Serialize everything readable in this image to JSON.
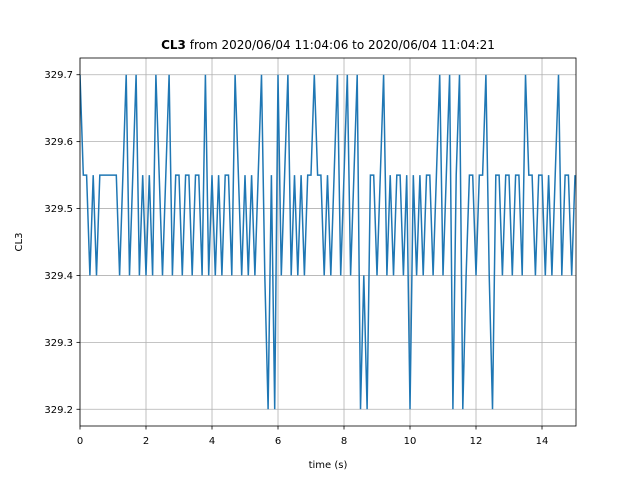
{
  "chart_data": {
    "type": "line",
    "title_bold": "CL3",
    "title": "from 2020/06/04 11:04:06 to 2020/06/04 11:04:21",
    "xlabel": "time (s)",
    "ylabel": "CL3",
    "xlim": [
      0,
      15.03
    ],
    "ylim": [
      329.175,
      329.725
    ],
    "xticks": [
      0,
      2,
      4,
      6,
      8,
      10,
      12,
      14
    ],
    "yticks": [
      329.2,
      329.3,
      329.4,
      329.5,
      329.6,
      329.7
    ],
    "grid": true,
    "series": [
      {
        "color": "#1f77b4",
        "x": [
          0,
          0.1,
          0.2,
          0.3,
          0.4,
          0.5,
          0.6,
          0.7,
          0.8,
          0.9,
          1,
          1.1,
          1.2,
          1.3,
          1.4,
          1.5,
          1.6,
          1.7,
          1.8,
          1.9,
          2,
          2.1,
          2.2,
          2.3,
          2.4,
          2.5,
          2.6,
          2.7,
          2.8,
          2.9,
          3,
          3.1,
          3.2,
          3.3,
          3.4,
          3.5,
          3.6,
          3.7,
          3.8,
          3.9,
          4,
          4.1,
          4.2,
          4.3,
          4.4,
          4.5,
          4.6,
          4.7,
          4.8,
          4.9,
          5,
          5.1,
          5.2,
          5.3,
          5.4,
          5.5,
          5.6,
          5.7,
          5.8,
          5.9,
          6,
          6.1,
          6.2,
          6.3,
          6.4,
          6.5,
          6.6,
          6.7,
          6.8,
          6.9,
          7,
          7.1,
          7.2,
          7.3,
          7.4,
          7.5,
          7.6,
          7.7,
          7.8,
          7.9,
          8,
          8.1,
          8.2,
          8.3,
          8.4,
          8.5,
          8.6,
          8.7,
          8.8,
          8.9,
          9,
          9.1,
          9.2,
          9.3,
          9.4,
          9.5,
          9.6,
          9.7,
          9.8,
          9.9,
          10,
          10.1,
          10.2,
          10.3,
          10.4,
          10.5,
          10.6,
          10.7,
          10.8,
          10.9,
          11,
          11.1,
          11.2,
          11.3,
          11.4,
          11.5,
          11.6,
          11.7,
          11.8,
          11.9,
          12,
          12.1,
          12.2,
          12.3,
          12.4,
          12.5,
          12.6,
          12.7,
          12.8,
          12.9,
          13,
          13.1,
          13.2,
          13.3,
          13.4,
          13.5,
          13.6,
          13.7,
          13.8,
          13.9,
          14,
          14.1,
          14.2,
          14.3,
          14.4,
          14.5,
          14.6,
          14.7,
          14.8,
          14.9,
          15
        ],
        "values": [
          329.7,
          329.55,
          329.55,
          329.4,
          329.55,
          329.4,
          329.55,
          329.55,
          329.55,
          329.55,
          329.55,
          329.55,
          329.4,
          329.55,
          329.7,
          329.4,
          329.55,
          329.7,
          329.4,
          329.55,
          329.4,
          329.55,
          329.4,
          329.7,
          329.55,
          329.4,
          329.55,
          329.7,
          329.4,
          329.55,
          329.55,
          329.4,
          329.55,
          329.55,
          329.4,
          329.55,
          329.55,
          329.4,
          329.7,
          329.4,
          329.55,
          329.4,
          329.55,
          329.4,
          329.55,
          329.55,
          329.4,
          329.7,
          329.55,
          329.4,
          329.55,
          329.4,
          329.55,
          329.4,
          329.55,
          329.7,
          329.4,
          329.2,
          329.55,
          329.2,
          329.7,
          329.4,
          329.55,
          329.7,
          329.4,
          329.55,
          329.4,
          329.55,
          329.4,
          329.55,
          329.55,
          329.7,
          329.55,
          329.55,
          329.4,
          329.55,
          329.4,
          329.55,
          329.7,
          329.4,
          329.55,
          329.7,
          329.4,
          329.55,
          329.7,
          329.2,
          329.4,
          329.2,
          329.55,
          329.55,
          329.4,
          329.55,
          329.7,
          329.4,
          329.55,
          329.4,
          329.55,
          329.55,
          329.4,
          329.55,
          329.2,
          329.55,
          329.4,
          329.55,
          329.4,
          329.55,
          329.55,
          329.4,
          329.55,
          329.7,
          329.4,
          329.55,
          329.7,
          329.2,
          329.55,
          329.7,
          329.2,
          329.4,
          329.55,
          329.55,
          329.4,
          329.55,
          329.55,
          329.7,
          329.4,
          329.2,
          329.55,
          329.55,
          329.4,
          329.55,
          329.55,
          329.4,
          329.55,
          329.55,
          329.4,
          329.7,
          329.55,
          329.55,
          329.4,
          329.55,
          329.55,
          329.4,
          329.55,
          329.4,
          329.55,
          329.7,
          329.4,
          329.55,
          329.55,
          329.4,
          329.55
        ]
      }
    ]
  }
}
